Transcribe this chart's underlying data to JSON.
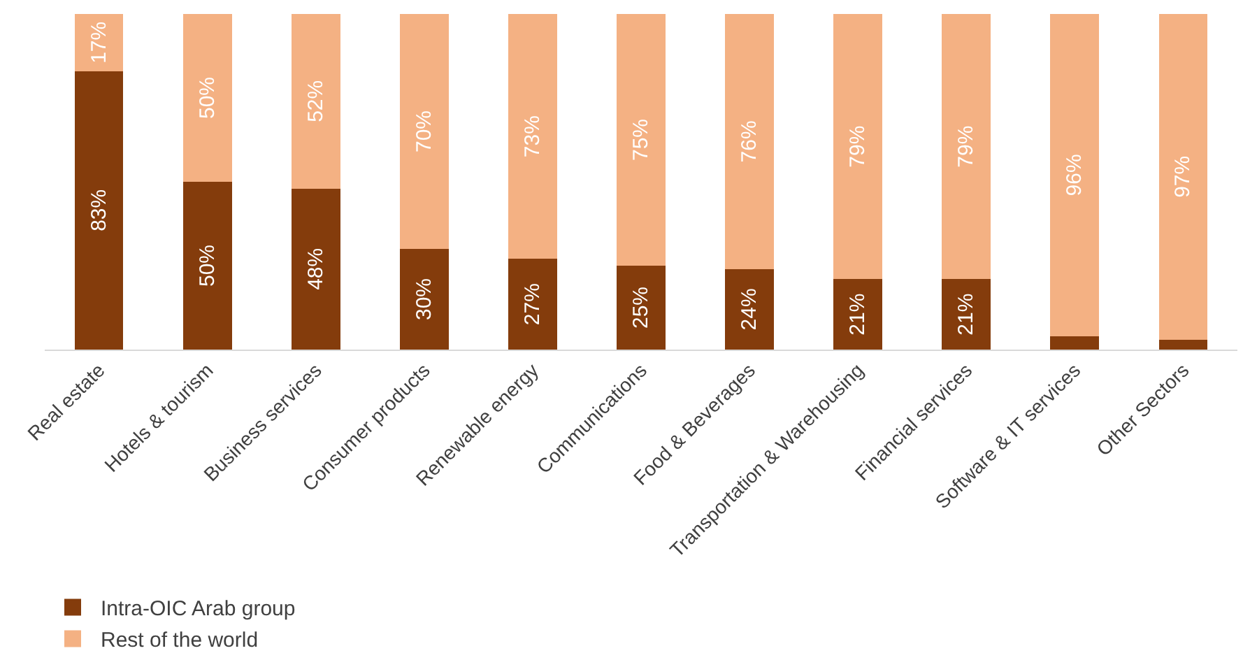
{
  "chart_data": {
    "type": "bar",
    "stacked": true,
    "categories": [
      "Real estate",
      "Hotels & tourism",
      "Business services",
      "Consumer products",
      "Renewable energy",
      "Communications",
      "Food & Beverages",
      "Transportation & Warehousing",
      "Financial services",
      "Software & IT services",
      "Other Sectors"
    ],
    "series": [
      {
        "name": "Intra-OIC Arab group",
        "color": "#843c0c",
        "values": [
          83,
          50,
          48,
          30,
          27,
          25,
          24,
          21,
          21,
          4,
          3
        ],
        "value_labels": [
          "83%",
          "50%",
          "48%",
          "30%",
          "27%",
          "25%",
          "24%",
          "21%",
          "21%",
          null,
          null
        ]
      },
      {
        "name": "Rest of the world",
        "color": "#f4b183",
        "values": [
          17,
          50,
          52,
          70,
          73,
          75,
          76,
          79,
          79,
          96,
          97
        ],
        "value_labels": [
          "17%",
          "50%",
          "52%",
          "70%",
          "73%",
          "75%",
          "76%",
          "79%",
          "79%",
          "96%",
          "97%"
        ]
      }
    ],
    "ylim": [
      0,
      100
    ],
    "tick_labels": "x",
    "legend": "bottom left"
  }
}
